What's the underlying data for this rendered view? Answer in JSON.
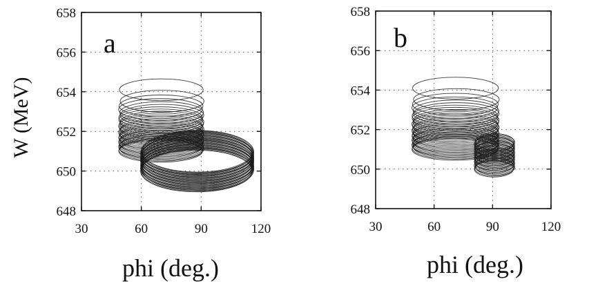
{
  "chart_data": [
    {
      "panel": "a",
      "type": "line",
      "xlabel": "phi (deg.)",
      "ylabel": "W (MeV)",
      "xlim": [
        30,
        120
      ],
      "ylim": [
        648,
        658
      ],
      "xticks": [
        30,
        60,
        90,
        120
      ],
      "yticks": [
        648,
        650,
        652,
        654,
        656,
        658
      ],
      "grid": true,
      "series": [
        {
          "rings": 30,
          "center_x": 70,
          "center_y_top": 654.1,
          "center_y_bottom": 651.0,
          "radius_x": 21,
          "radius_y": 0.55,
          "spacing": "denser toward bottom"
        },
        {
          "rings": 30,
          "center_x": 88,
          "center_y_top": 651.0,
          "center_y_bottom": 650.0,
          "radius_x": 28,
          "radius_y": 1.05,
          "spacing": "uniform"
        }
      ]
    },
    {
      "panel": "b",
      "type": "line",
      "xlabel": "phi (deg.)",
      "ylabel": "",
      "xlim": [
        30,
        120
      ],
      "ylim": [
        648,
        658
      ],
      "xticks": [
        30,
        60,
        90,
        120
      ],
      "yticks": [
        648,
        650,
        652,
        654,
        656,
        658
      ],
      "grid": true,
      "series": [
        {
          "rings": 30,
          "center_x": 71,
          "center_y_top": 654.1,
          "center_y_bottom": 651.0,
          "radius_x": 22,
          "radius_y": 0.55,
          "spacing": "denser toward bottom"
        },
        {
          "rings": 30,
          "center_x": 91,
          "center_y_top": 651.4,
          "center_y_bottom": 650.0,
          "radius_x": 10,
          "radius_y": 0.4,
          "spacing": "uniform"
        }
      ]
    }
  ]
}
